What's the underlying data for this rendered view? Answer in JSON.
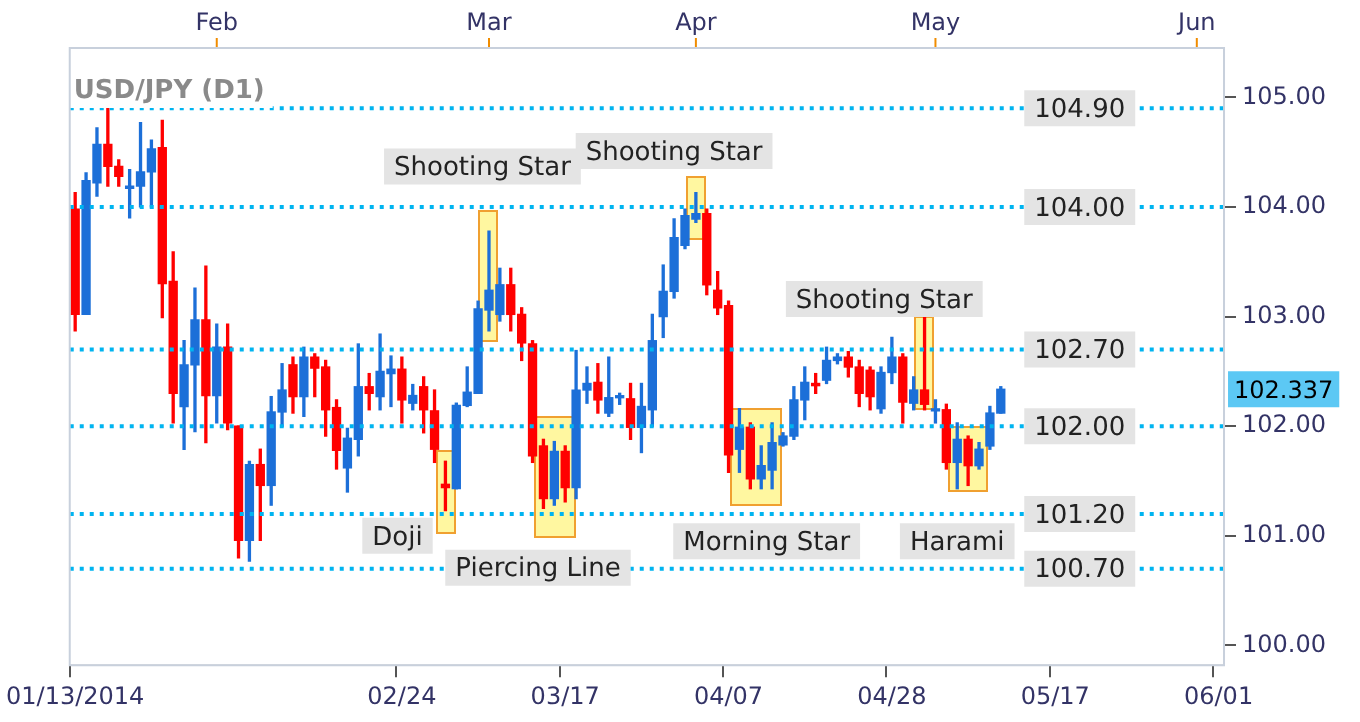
{
  "chart_data": {
    "type": "candlestick",
    "title": "USD/JPY (D1)",
    "categories": [
      "01/13/2014",
      null,
      null,
      null,
      null,
      null,
      null,
      null,
      null,
      null,
      null,
      null,
      null,
      null,
      null,
      null,
      null,
      null,
      null,
      null,
      null,
      null,
      null,
      null,
      null,
      null,
      null,
      null,
      null,
      null,
      "02/24",
      null,
      null,
      null,
      null,
      null,
      null,
      null,
      null,
      null,
      null,
      null,
      null,
      null,
      null,
      "03/17",
      null,
      null,
      null,
      null,
      null,
      null,
      null,
      null,
      null,
      null,
      null,
      null,
      null,
      null,
      "04/07",
      null,
      null,
      null,
      null,
      null,
      null,
      null,
      null,
      null,
      null,
      null,
      null,
      null,
      null,
      "04/28",
      null,
      null,
      null,
      null,
      null,
      null,
      null,
      null,
      null,
      null,
      null,
      null,
      null,
      null,
      "05/17",
      null,
      null,
      null,
      null,
      null,
      null,
      null,
      null,
      null,
      null,
      null,
      null,
      null,
      null,
      "06/01"
    ],
    "ohlc": [
      [
        103.98,
        104.13,
        102.87,
        103.02
      ],
      [
        103.02,
        104.31,
        103.02,
        104.24
      ],
      [
        104.22,
        104.72,
        104.1,
        104.57
      ],
      [
        104.57,
        104.91,
        104.19,
        104.37
      ],
      [
        104.37,
        104.43,
        104.19,
        104.28
      ],
      [
        104.17,
        104.34,
        103.9,
        104.19
      ],
      [
        104.19,
        104.77,
        104.0,
        104.32
      ],
      [
        104.32,
        104.61,
        104.0,
        104.53
      ],
      [
        104.54,
        104.79,
        102.99,
        103.3
      ],
      [
        103.32,
        103.59,
        102.03,
        102.3
      ],
      [
        102.18,
        102.78,
        101.79,
        102.56
      ],
      [
        102.56,
        103.26,
        101.95,
        102.97
      ],
      [
        102.97,
        103.46,
        101.85,
        102.28
      ],
      [
        102.28,
        102.93,
        102.03,
        102.72
      ],
      [
        102.72,
        102.93,
        101.97,
        102.03
      ],
      [
        102.0,
        102.0,
        100.8,
        100.96
      ],
      [
        100.96,
        101.68,
        100.77,
        101.65
      ],
      [
        101.65,
        101.79,
        100.96,
        101.46
      ],
      [
        101.46,
        102.27,
        101.28,
        102.13
      ],
      [
        102.13,
        102.57,
        102.0,
        102.33
      ],
      [
        102.56,
        102.63,
        102.12,
        102.27
      ],
      [
        102.27,
        102.72,
        102.09,
        102.63
      ],
      [
        102.63,
        102.66,
        102.27,
        102.53
      ],
      [
        102.54,
        102.6,
        101.91,
        102.15
      ],
      [
        102.17,
        102.24,
        101.61,
        101.78
      ],
      [
        101.62,
        101.98,
        101.4,
        101.89
      ],
      [
        101.88,
        102.75,
        101.73,
        102.36
      ],
      [
        102.36,
        102.48,
        102.15,
        102.3
      ],
      [
        102.27,
        102.84,
        102.15,
        102.5
      ],
      [
        102.48,
        102.64,
        102.18,
        102.52
      ],
      [
        102.52,
        102.63,
        102.03,
        102.24
      ],
      [
        102.21,
        102.38,
        102.15,
        102.28
      ],
      [
        102.36,
        102.45,
        101.94,
        102.15
      ],
      [
        102.14,
        102.33,
        101.67,
        101.79
      ],
      [
        101.47,
        101.68,
        101.23,
        101.44
      ],
      [
        101.43,
        102.21,
        101.43,
        102.19
      ],
      [
        102.19,
        102.54,
        102.18,
        102.31
      ],
      [
        102.3,
        103.14,
        102.3,
        103.07
      ],
      [
        103.06,
        103.78,
        102.87,
        103.24
      ],
      [
        103.02,
        103.44,
        102.96,
        103.29
      ],
      [
        103.29,
        103.44,
        102.87,
        103.02
      ],
      [
        103.02,
        103.08,
        102.6,
        102.76
      ],
      [
        102.75,
        102.78,
        101.67,
        101.73
      ],
      [
        101.82,
        101.88,
        101.25,
        101.34
      ],
      [
        101.34,
        101.86,
        101.28,
        101.77
      ],
      [
        101.77,
        101.82,
        101.31,
        101.44
      ],
      [
        101.44,
        102.69,
        101.34,
        102.33
      ],
      [
        102.33,
        102.54,
        102.21,
        102.39
      ],
      [
        102.4,
        102.57,
        102.12,
        102.24
      ],
      [
        102.12,
        102.63,
        102.09,
        102.26
      ],
      [
        102.26,
        102.3,
        102.2,
        102.27
      ],
      [
        102.25,
        102.39,
        101.88,
        101.99
      ],
      [
        101.99,
        102.39,
        101.76,
        102.18
      ],
      [
        102.15,
        103.02,
        102.0,
        102.78
      ],
      [
        103.0,
        103.47,
        102.81,
        103.23
      ],
      [
        103.23,
        103.89,
        103.17,
        103.72
      ],
      [
        103.65,
        103.98,
        103.62,
        103.92
      ],
      [
        103.89,
        104.13,
        103.86,
        103.94
      ],
      [
        103.94,
        103.98,
        103.2,
        103.29
      ],
      [
        103.24,
        103.41,
        103.02,
        103.08
      ],
      [
        103.1,
        103.14,
        101.58,
        101.74
      ],
      [
        101.79,
        102.16,
        101.58,
        101.99
      ],
      [
        101.99,
        102.03,
        101.43,
        101.52
      ],
      [
        101.52,
        101.82,
        101.43,
        101.64
      ],
      [
        101.6,
        102.03,
        101.43,
        101.85
      ],
      [
        101.83,
        101.94,
        101.82,
        101.91
      ],
      [
        101.91,
        102.36,
        101.88,
        102.24
      ],
      [
        102.24,
        102.54,
        102.06,
        102.4
      ],
      [
        102.39,
        102.48,
        102.3,
        102.37
      ],
      [
        102.42,
        102.72,
        102.39,
        102.6
      ],
      [
        102.6,
        102.66,
        102.57,
        102.63
      ],
      [
        102.63,
        102.68,
        102.45,
        102.54
      ],
      [
        102.54,
        102.6,
        102.18,
        102.3
      ],
      [
        102.51,
        102.54,
        102.15,
        102.27
      ],
      [
        102.16,
        102.54,
        102.12,
        102.49
      ],
      [
        102.49,
        102.81,
        102.39,
        102.63
      ],
      [
        102.63,
        102.66,
        102.03,
        102.22
      ],
      [
        102.21,
        102.45,
        102.15,
        102.33
      ],
      [
        102.33,
        103.0,
        102.15,
        102.2
      ],
      [
        102.14,
        102.24,
        102.03,
        102.15
      ],
      [
        102.15,
        102.2,
        101.61,
        101.67
      ],
      [
        101.67,
        102.03,
        101.43,
        101.88
      ],
      [
        101.88,
        101.91,
        101.46,
        101.64
      ],
      [
        101.64,
        101.85,
        101.61,
        101.79
      ],
      [
        101.82,
        102.18,
        101.79,
        102.12
      ],
      [
        102.12,
        102.36,
        102.12,
        102.337
      ],
      null,
      null,
      null,
      null,
      null,
      null,
      null,
      null,
      null,
      null,
      null,
      null,
      null,
      null,
      null,
      null,
      null,
      null,
      null,
      null
    ],
    "ylim": [
      99.82,
      105.45
    ],
    "yticks": [
      {
        "value": 100,
        "label": "100.00"
      },
      {
        "value": 101,
        "label": "101.00"
      },
      {
        "value": 102,
        "label": "102.00"
      },
      {
        "value": 103,
        "label": "103.00"
      },
      {
        "value": 104,
        "label": "104.00"
      },
      {
        "value": 105,
        "label": "105.00"
      }
    ],
    "ref_lines": [
      {
        "axis": "y",
        "value": 104.9,
        "label": "104.90",
        "color": "#00b4f0",
        "line_style": "dotted"
      },
      {
        "axis": "y",
        "value": 104.0,
        "label": "104.00",
        "color": "#00b4f0",
        "line_style": "dotted"
      },
      {
        "axis": "y",
        "value": 102.7,
        "label": "102.70",
        "color": "#00b4f0",
        "line_style": "dotted"
      },
      {
        "axis": "y",
        "value": 102.0,
        "label": "102.00",
        "color": "#00b4f0",
        "line_style": "dotted"
      },
      {
        "axis": "y",
        "value": 101.2,
        "label": "101.20",
        "color": "#00b4f0",
        "line_style": "dotted"
      },
      {
        "axis": "y",
        "value": 100.7,
        "label": "100.70",
        "color": "#00b4f0",
        "line_style": "dotted"
      }
    ],
    "annotations": [
      "Shooting Star",
      "Shooting Star",
      "Shooting Star",
      "Doji",
      "Piercing Line",
      "Morning Star",
      "Harami",
      "Feb",
      "Mar",
      "Apr",
      "May",
      "Jun",
      "102.337"
    ],
    "legend": false
  }
}
